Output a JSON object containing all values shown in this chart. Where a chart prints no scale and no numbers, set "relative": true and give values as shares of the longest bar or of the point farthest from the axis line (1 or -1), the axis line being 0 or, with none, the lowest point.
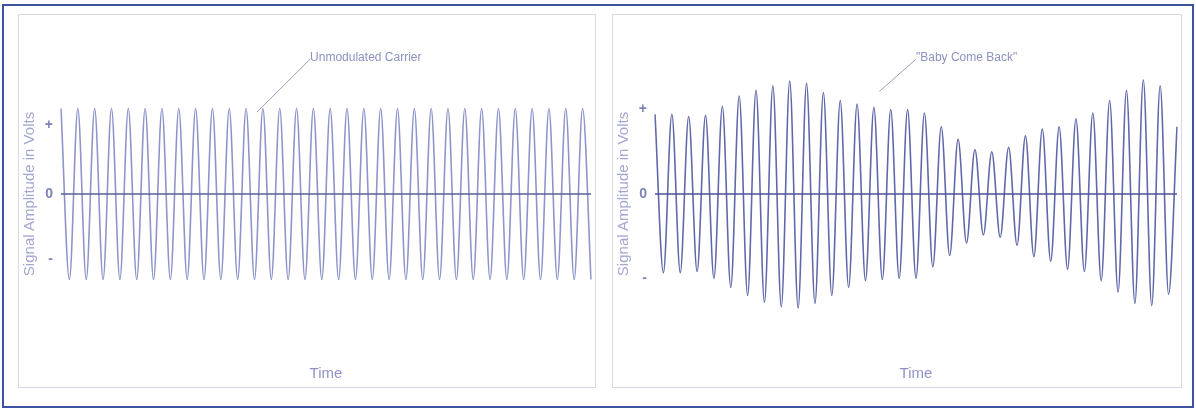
{
  "chart_data": [
    {
      "type": "line",
      "relative": true,
      "xlabel": "Time",
      "ylabel": "Signal Amplitude in Volts",
      "annotations": [
        "Unmodulated Carrier",
        "+",
        "0",
        "-"
      ],
      "marker": "none",
      "grid": false,
      "legend": false,
      "tick_labels": false,
      "categories": [
        null,
        null,
        null,
        null,
        null,
        null,
        null,
        null,
        null,
        null,
        null,
        null,
        null,
        null,
        null,
        null,
        null,
        null,
        null,
        null,
        null,
        null,
        null,
        null,
        null,
        null,
        null,
        null,
        null,
        null,
        null,
        null,
        null,
        null,
        null,
        null,
        null,
        null,
        null,
        null,
        null,
        null,
        null,
        null,
        null,
        null,
        null,
        null,
        null,
        null,
        null,
        null,
        null,
        null,
        null,
        null,
        null,
        null,
        null,
        null,
        null,
        null,
        null,
        null
      ],
      "series": [
        {
          "color": "#8e94c9",
          "values": [
            1,
            -1,
            1,
            -1,
            1,
            -1,
            1,
            -1,
            1,
            -1,
            1,
            -1,
            1,
            -1,
            1,
            -1,
            1,
            -1,
            1,
            -1,
            1,
            -1,
            1,
            -1,
            1,
            -1,
            1,
            -1,
            1,
            -1,
            1,
            -1,
            1,
            -1,
            1,
            -1,
            1,
            -1,
            1,
            -1,
            1,
            -1,
            1,
            -1,
            1,
            -1,
            1,
            -1,
            1,
            -1,
            1,
            -1,
            1,
            -1,
            1,
            -1,
            1,
            -1,
            1,
            -1,
            1,
            -1,
            1,
            -1
          ]
        }
      ],
      "ref_lines": [
        {
          "axis": "y",
          "value": 0,
          "color": "#5a6199"
        }
      ]
    },
    {
      "type": "line",
      "relative": true,
      "xlabel": "Time",
      "ylabel": "Signal Amplitude in Volts",
      "annotations": [
        "\"Baby Come Back\"",
        "+",
        "0",
        "-"
      ],
      "marker": "none",
      "grid": false,
      "legend": false,
      "tick_labels": false,
      "categories": [
        null,
        null,
        null,
        null,
        null,
        null,
        null,
        null,
        null,
        null,
        null,
        null,
        null,
        null,
        null,
        null,
        null,
        null,
        null,
        null,
        null,
        null,
        null,
        null,
        null,
        null,
        null,
        null,
        null,
        null,
        null,
        null,
        null,
        null,
        null,
        null,
        null,
        null,
        null,
        null,
        null,
        null,
        null,
        null,
        null,
        null,
        null,
        null,
        null,
        null,
        null,
        null,
        null,
        null,
        null,
        null,
        null,
        null,
        null,
        null,
        null,
        null,
        null
      ],
      "series": [
        {
          "color": "#6068aa",
          "values": [
            0.7,
            -0.69,
            0.7,
            -0.69,
            0.68,
            -0.68,
            0.69,
            -0.74,
            0.77,
            -0.82,
            0.86,
            -0.89,
            0.91,
            -0.95,
            0.95,
            -0.99,
            0.99,
            -1,
            0.97,
            -0.96,
            0.89,
            -0.89,
            0.82,
            -0.82,
            0.79,
            -0.76,
            0.76,
            -0.75,
            0.74,
            -0.74,
            0.74,
            -0.74,
            0.71,
            -0.64,
            0.59,
            -0.54,
            0.48,
            -0.43,
            0.39,
            -0.36,
            0.37,
            -0.38,
            0.41,
            -0.45,
            0.51,
            -0.55,
            0.57,
            -0.59,
            0.59,
            -0.66,
            0.66,
            -0.68,
            0.71,
            -0.76,
            0.82,
            -0.86,
            0.91,
            -0.96,
            1,
            -0.98,
            0.95,
            -0.88,
            0.59
          ]
        }
      ],
      "ref_lines": [
        {
          "axis": "y",
          "value": 0,
          "color": "#4b5396"
        }
      ]
    }
  ]
}
